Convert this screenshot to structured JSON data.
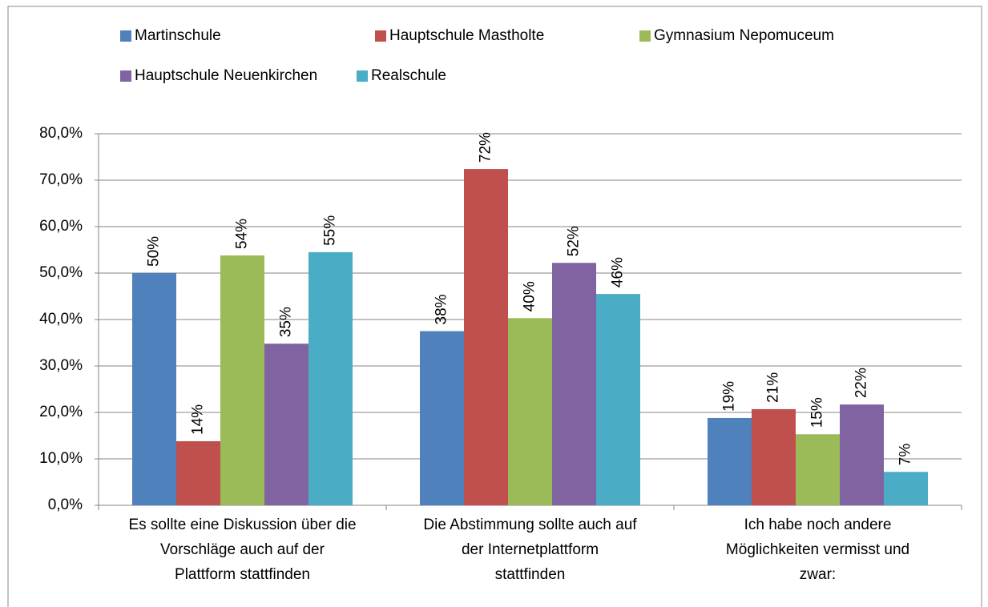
{
  "chart_data": {
    "type": "bar",
    "categories": [
      "Es sollte eine Diskussion über die\nVorschläge auch auf der\nPlattform stattfinden",
      "Die Abstimmung sollte auch auf\nder Internetplattform\nstattfinden",
      "Ich habe noch andere\nMöglichkeiten vermisst und\nzwar:"
    ],
    "series": [
      {
        "name": "Martinschule",
        "color": "#4f81bd",
        "values": [
          50.0,
          37.5,
          18.8
        ],
        "value_labels": [
          "50%",
          "38%",
          "19%"
        ]
      },
      {
        "name": "Hauptschule Mastholte",
        "color": "#c0504d",
        "values": [
          13.8,
          72.4,
          20.7
        ],
        "value_labels": [
          "14%",
          "72%",
          "21%"
        ]
      },
      {
        "name": "Gymnasium Nepomuceum",
        "color": "#9bbb59",
        "values": [
          53.8,
          40.3,
          15.3
        ],
        "value_labels": [
          "54%",
          "40%",
          "15%"
        ]
      },
      {
        "name": "Hauptschule Neuenkirchen",
        "color": "#8064a2",
        "values": [
          34.8,
          52.2,
          21.7
        ],
        "value_labels": [
          "35%",
          "52%",
          "22%"
        ]
      },
      {
        "name": "Realschule",
        "color": "#4bacc6",
        "values": [
          54.5,
          45.5,
          7.2
        ],
        "value_labels": [
          "55%",
          "46%",
          "7%"
        ]
      }
    ],
    "ylim": [
      0,
      80
    ],
    "yticks": [
      {
        "value": 0,
        "label": "0,0%"
      },
      {
        "value": 10,
        "label": "10,0%"
      },
      {
        "value": 20,
        "label": "20,0%"
      },
      {
        "value": 30,
        "label": "30,0%"
      },
      {
        "value": 40,
        "label": "40,0%"
      },
      {
        "value": 50,
        "label": "50,0%"
      },
      {
        "value": 60,
        "label": "60,0%"
      },
      {
        "value": 70,
        "label": "70,0%"
      },
      {
        "value": 80,
        "label": "80,0%"
      }
    ],
    "grid": true,
    "legend": "top"
  }
}
